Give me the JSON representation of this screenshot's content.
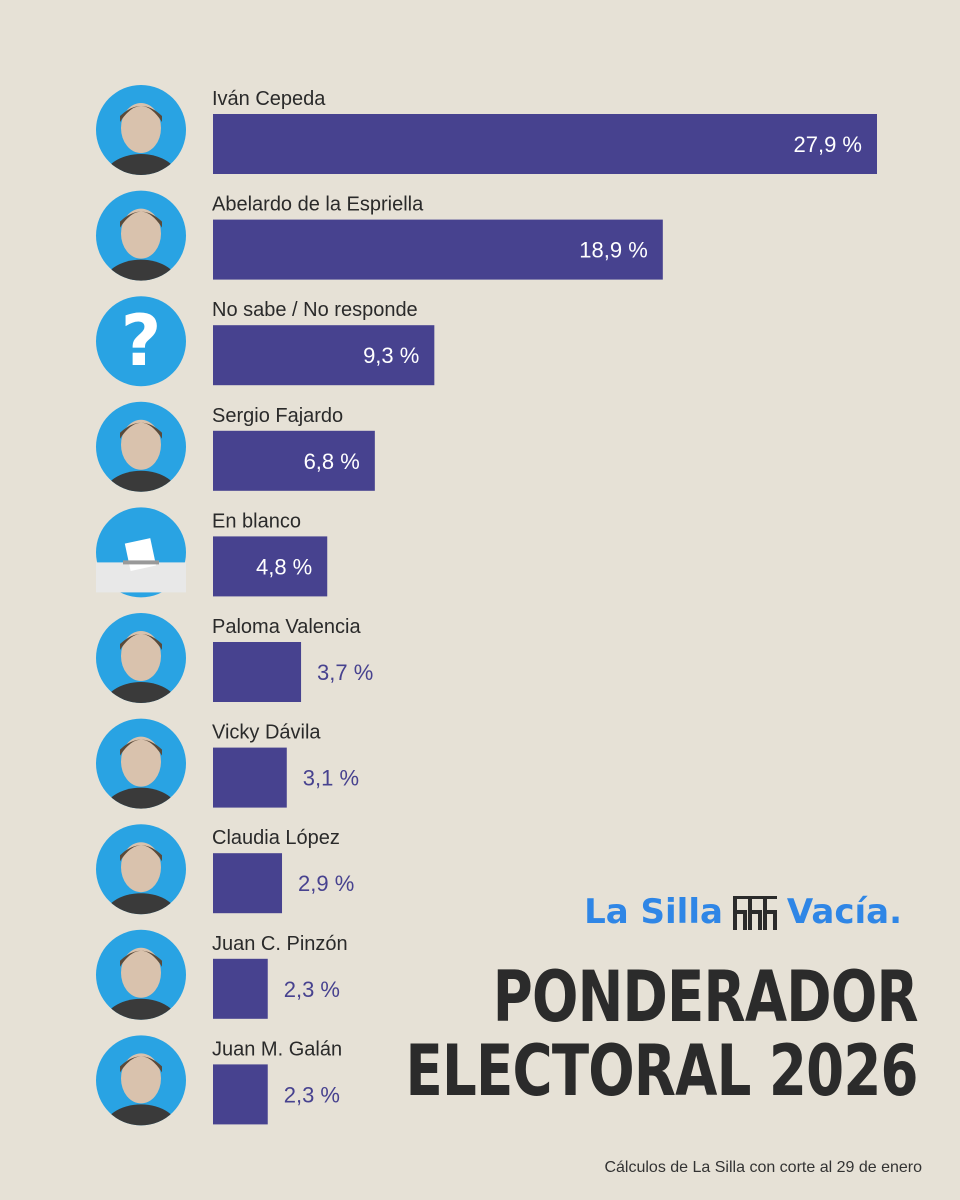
{
  "chart_data": {
    "type": "bar",
    "orientation": "horizontal",
    "categories": [
      "Iván Cepeda",
      "Abelardo de la Espriella",
      "No sabe / No responde",
      "Sergio Fajardo",
      "En blanco",
      "Paloma Valencia",
      "Vicky Dávila",
      "Claudia López",
      "Juan C. Pinzón",
      "Juan M. Galán"
    ],
    "values": [
      27.9,
      18.9,
      9.3,
      6.8,
      4.8,
      3.7,
      3.1,
      2.9,
      2.3,
      2.3
    ],
    "value_labels": [
      "27,9 %",
      "18,9 %",
      "9,3 %",
      "6,8 %",
      "4,8 %",
      "3,7 %",
      "3,1 %",
      "2,9 %",
      "2,3 %",
      "2,3 %"
    ],
    "icons": [
      "avatar-ivan-cepeda",
      "avatar-abelardo-de-la-espriella",
      "question-mark-icon",
      "avatar-sergio-fajardo",
      "ballot-box-icon",
      "avatar-paloma-valencia",
      "avatar-vicky-davila",
      "avatar-claudia-lopez",
      "avatar-juan-c-pinzon",
      "avatar-juan-m-galan"
    ],
    "bar_color": "#47428f",
    "avatar_color": "#29a3e3",
    "xlim": [
      0,
      27.9
    ],
    "grid": false,
    "legend": "none"
  },
  "brand": {
    "name_left": "La Silla",
    "name_right": "Vacía.",
    "color": "#2f86e6"
  },
  "headline": {
    "line1": "PONDERADOR",
    "line2": "ELECTORAL 2026"
  },
  "footer": {
    "note": "Cálculos de La Silla con corte al 29 de enero"
  }
}
